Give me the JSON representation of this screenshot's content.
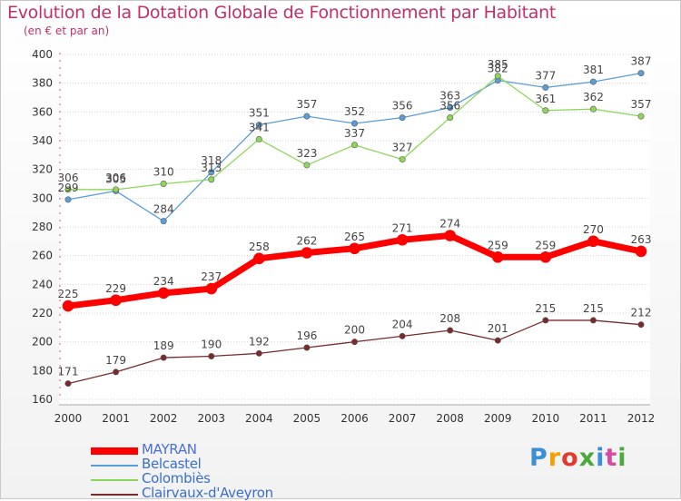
{
  "header": {
    "title": "Evolution de la Dotation Globale de Fonctionnement par Habitant",
    "subtitle": "(en € et par an)"
  },
  "logo": {
    "text": "Proxiti",
    "colors": [
      "#3a8fd6",
      "#f2a100",
      "#e23a2e",
      "#4aa83c",
      "#3a8fd6",
      "#d64aa0",
      "#4aa83c"
    ]
  },
  "chart_data": {
    "type": "line",
    "title": "Evolution de la Dotation Globale de Fonctionnement par Habitant",
    "subtitle": "(en € et par an)",
    "x": [
      "2000",
      "2001",
      "2002",
      "2003",
      "2004",
      "2005",
      "2006",
      "2007",
      "2008",
      "2009",
      "2010",
      "2011",
      "2012"
    ],
    "ylim": [
      160,
      400
    ],
    "yticks": [
      160,
      180,
      200,
      220,
      240,
      260,
      280,
      300,
      320,
      340,
      360,
      380,
      400
    ],
    "grid": true,
    "legend": "bottom-left",
    "series": [
      {
        "name": "Belcastel",
        "color": "#5b9ed6",
        "values": [
          299,
          305,
          284,
          318,
          351,
          357,
          352,
          356,
          363,
          382,
          377,
          381,
          387
        ]
      },
      {
        "name": "Colombiès",
        "color": "#8ed65b",
        "values": [
          306,
          306,
          310,
          313,
          341,
          323,
          337,
          327,
          356,
          385,
          361,
          362,
          357
        ]
      },
      {
        "name": "MAYRAN",
        "color": "#ff0000",
        "values": [
          225,
          229,
          234,
          237,
          258,
          262,
          265,
          271,
          274,
          259,
          259,
          270,
          263
        ]
      },
      {
        "name": "Clairvaux-d'Aveyron",
        "color": "#7a2a2a",
        "values": [
          171,
          179,
          189,
          190,
          192,
          196,
          200,
          204,
          208,
          201,
          215,
          215,
          212
        ]
      }
    ],
    "legend_order": [
      "MAYRAN",
      "Belcastel",
      "Colombiès",
      "Clairvaux-d'Aveyron"
    ]
  }
}
